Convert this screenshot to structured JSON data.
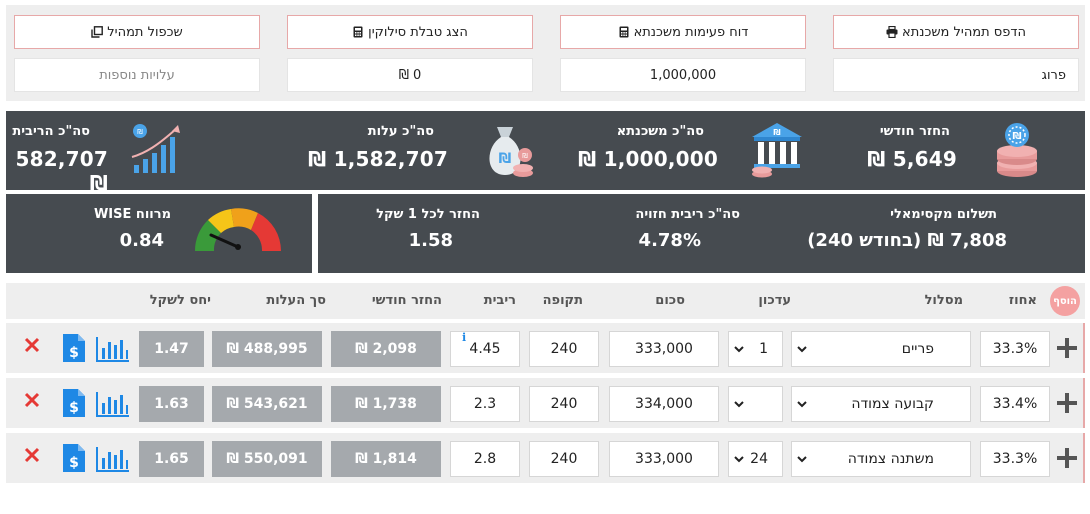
{
  "top": {
    "buttons": [
      "הדפס תמהיל משכנתא",
      "דוח פעימות משכנתא",
      "הצג טבלת סילוקין",
      "שכפול תמהיל"
    ],
    "values": [
      "פרוג",
      "1,000,000",
      "0 ₪",
      "עלויות נוספות"
    ]
  },
  "summary": {
    "monthly_return": {
      "title": "החזר חודשי",
      "value": "5,649 ₪"
    },
    "total_mortgage": {
      "title": "סה\"כ משכנתא",
      "value": "1,000,000 ₪"
    },
    "total_cost": {
      "title": "סה\"כ עלות",
      "value": "1,582,707 ₪"
    },
    "total_interest": {
      "title": "סה\"כ הריבית",
      "value": "582,707 ₪"
    }
  },
  "summary2": {
    "max_payment": {
      "title": "תשלום מקסימאלי",
      "value": "7,808 ₪ (בחודש 240)"
    },
    "expected_rate": {
      "title": "סה\"כ ריבית חזויה",
      "value": "4.78%"
    },
    "return_per_shekel": {
      "title": "החזר לכל 1 שקל",
      "value": "1.58"
    },
    "wise_margin": {
      "title": "מרווח WISE",
      "value": "0.84",
      "level": 0.84
    }
  },
  "table": {
    "add_label": "הוסף",
    "headers": [
      "אחוז",
      "מסלול",
      "עדכון",
      "סכום",
      "תקופה",
      "ריבית",
      "החזר חודשי",
      "סך העלות",
      "יחס לשקל"
    ],
    "rows": [
      {
        "percent": "33.3%",
        "track": "פריים",
        "update": "1",
        "amount": "333,000",
        "period": "240",
        "rate": "4.45",
        "monthly": "2,098 ₪",
        "total": "488,995 ₪",
        "ratio": "1.47",
        "info": "i"
      },
      {
        "percent": "33.4%",
        "track": "קבועה צמודה",
        "update": "",
        "amount": "334,000",
        "period": "240",
        "rate": "2.3",
        "monthly": "1,738 ₪",
        "total": "543,621 ₪",
        "ratio": "1.63",
        "info": ""
      },
      {
        "percent": "33.3%",
        "track": "משתנה צמודה",
        "update": "24",
        "amount": "333,000",
        "period": "240",
        "rate": "2.8",
        "monthly": "1,814 ₪",
        "total": "550,091 ₪",
        "ratio": "1.65",
        "info": ""
      }
    ]
  },
  "colors": {
    "dark_panel": "#464b50",
    "accent_pink": "#e7a8a8",
    "grey_cell": "#a5a9ad",
    "x_red": "#e53935",
    "icon_blue": "#1e88e5"
  }
}
